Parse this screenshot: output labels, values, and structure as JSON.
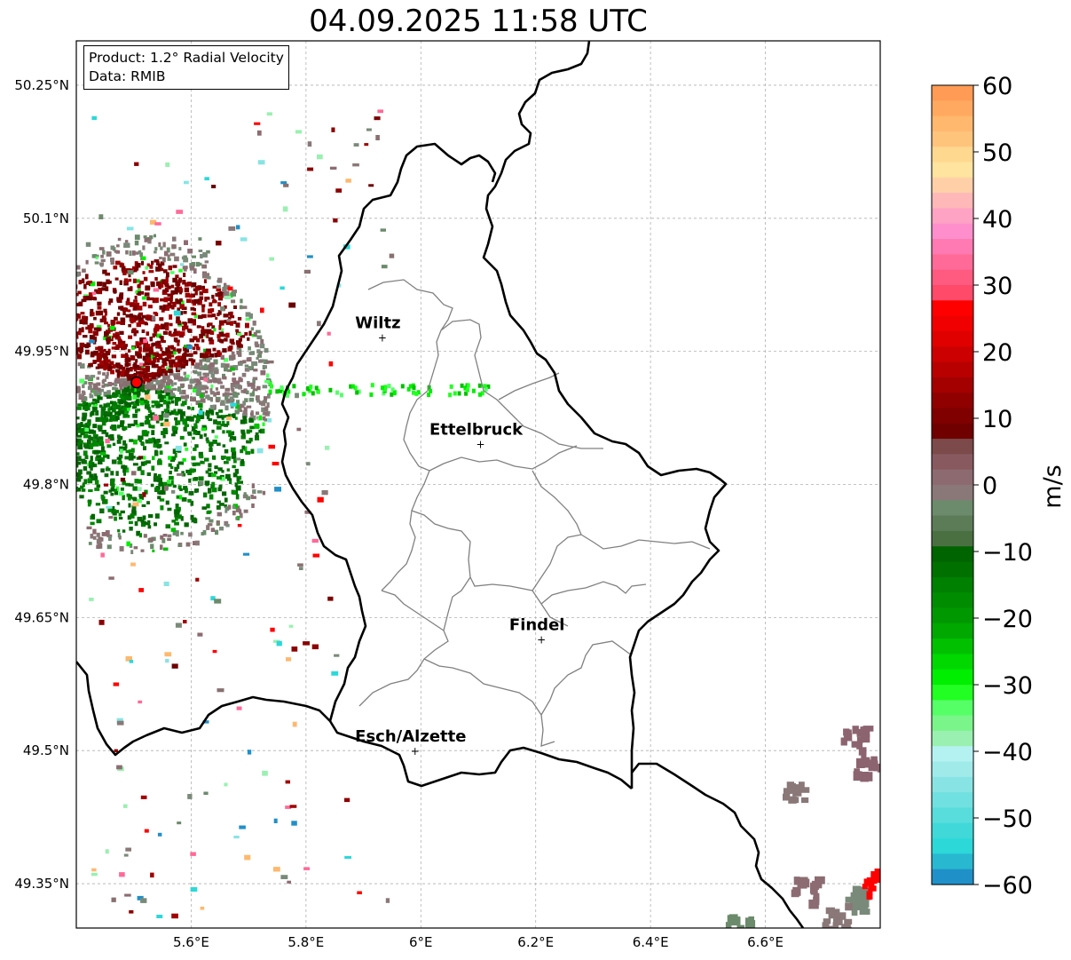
{
  "title": "04.09.2025 11:58 UTC",
  "info": {
    "product_line": "Product: 1.2° Radial Velocity",
    "data_line": "Data: RMIB"
  },
  "axes": {
    "x_ticks": [
      {
        "value": 5.6,
        "label": "5.6°E"
      },
      {
        "value": 5.8,
        "label": "5.8°E"
      },
      {
        "value": 6.0,
        "label": "6°E"
      },
      {
        "value": 6.2,
        "label": "6.2°E"
      },
      {
        "value": 6.4,
        "label": "6.4°E"
      },
      {
        "value": 6.6,
        "label": "6.6°E"
      }
    ],
    "y_ticks": [
      {
        "value": 50.25,
        "label": "50.25°N"
      },
      {
        "value": 50.1,
        "label": "50.1°N"
      },
      {
        "value": 49.95,
        "label": "49.95°N"
      },
      {
        "value": 49.8,
        "label": "49.8°N"
      },
      {
        "value": 49.65,
        "label": "49.65°N"
      },
      {
        "value": 49.5,
        "label": "49.5°N"
      },
      {
        "value": 49.35,
        "label": "49.35°N"
      }
    ],
    "lon_range": [
      5.4,
      6.8
    ],
    "lat_range": [
      49.3,
      50.3
    ]
  },
  "cities": [
    {
      "name": "Wiltz",
      "lon": 5.933,
      "lat": 49.966
    },
    {
      "name": "Ettelbruck",
      "lon": 6.104,
      "lat": 49.846
    },
    {
      "name": "Findel",
      "lon": 6.21,
      "lat": 49.626
    },
    {
      "name": "Esch/Alzette",
      "lon": 5.99,
      "lat": 49.5
    }
  ],
  "radar_site": {
    "lon": 5.505,
    "lat": 49.915
  },
  "colorbar": {
    "label": "m/s",
    "ticks": [
      "60",
      "50",
      "40",
      "30",
      "20",
      "10",
      "0",
      "−10",
      "−20",
      "−30",
      "−40",
      "−50",
      "−60"
    ],
    "min": -60,
    "max": 60,
    "colors": [
      "#ff9b55",
      "#ffa960",
      "#ffb86d",
      "#ffc47c",
      "#ffd890",
      "#ffe4a0",
      "#ffd0a8",
      "#ffb8b8",
      "#ffa3c4",
      "#ff8fcc",
      "#ff7ab2",
      "#ff6a98",
      "#ff5a80",
      "#ff4a6a",
      "#ff0000",
      "#f00000",
      "#e00000",
      "#cc0000",
      "#b80000",
      "#a40000",
      "#900000",
      "#800000",
      "#700000",
      "#7c4a4a",
      "#885a60",
      "#8c6a70",
      "#8a7878",
      "#6c8a6c",
      "#5c7c58",
      "#4a7042",
      "#006400",
      "#007000",
      "#008000",
      "#008c00",
      "#009800",
      "#00a800",
      "#00c000",
      "#00d800",
      "#00ee00",
      "#22ff22",
      "#55ff66",
      "#7af58a",
      "#9af0b0",
      "#b4f2f2",
      "#a0eaea",
      "#88e4e4",
      "#70e0e0",
      "#58dcdc",
      "#40d8d8",
      "#2cd8d8",
      "#28b8d0",
      "#2090c8"
    ]
  }
}
